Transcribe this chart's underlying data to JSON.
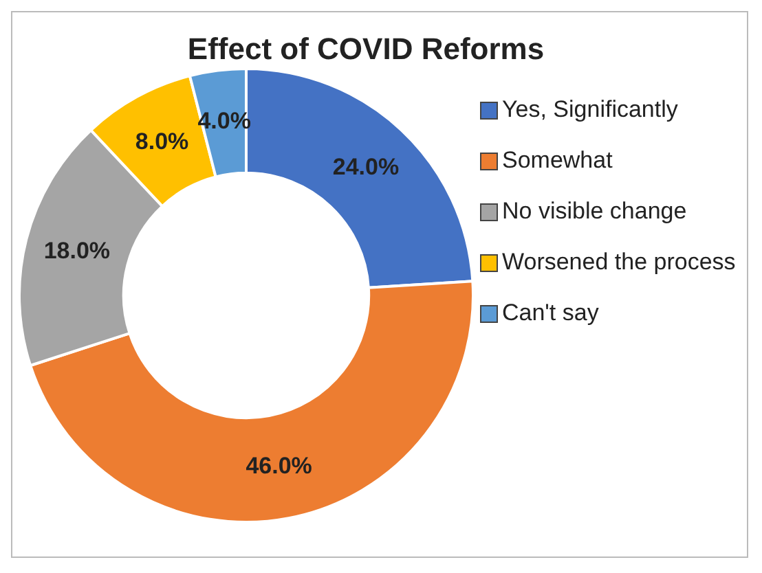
{
  "chart_data": {
    "type": "donut",
    "title": "Effect of COVID Reforms",
    "categories": [
      "Yes, Significantly",
      "Somewhat",
      "No visible change",
      "Worsened the process",
      "Can't say"
    ],
    "values": [
      24,
      46,
      18,
      8,
      4
    ],
    "value_labels": [
      "24.0%",
      "46.0%",
      "18.0%",
      "8.0%",
      "4.0%"
    ],
    "colors": [
      "#4472c4",
      "#ed7d31",
      "#a5a5a5",
      "#ffc000",
      "#5b9bd5"
    ],
    "legend": "right"
  }
}
